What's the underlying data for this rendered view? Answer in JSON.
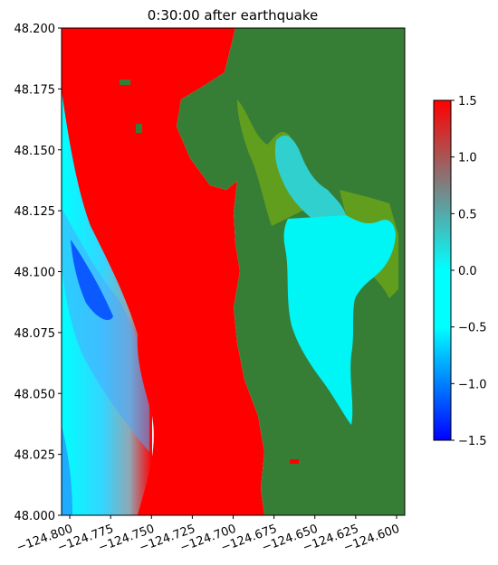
{
  "chart_data": {
    "type": "heatmap",
    "title": "0:30:00 after earthquake",
    "xlabel": "",
    "ylabel": "",
    "xlim": [
      -124.805,
      -124.595
    ],
    "ylim": [
      48.0,
      48.2
    ],
    "x_ticks": [
      -124.8,
      -124.775,
      -124.75,
      -124.725,
      -124.7,
      -124.675,
      -124.65,
      -124.625,
      -124.6
    ],
    "x_tick_labels": [
      "−124.800",
      "−124.775",
      "−124.750",
      "−124.725",
      "−124.700",
      "−124.675",
      "−124.650",
      "−124.625",
      "−124.600"
    ],
    "y_ticks": [
      48.0,
      48.025,
      48.05,
      48.075,
      48.1,
      48.125,
      48.15,
      48.175,
      48.2
    ],
    "y_tick_labels": [
      "48.000",
      "48.025",
      "48.050",
      "48.075",
      "48.100",
      "48.125",
      "48.150",
      "48.175",
      "48.200"
    ],
    "colorbar": {
      "min": -1.5,
      "max": 1.5,
      "ticks": [
        -1.5,
        -1.0,
        -0.5,
        0.0,
        0.5,
        1.0,
        1.5
      ],
      "tick_labels": [
        "−1.5",
        "−1.0",
        "−0.5",
        "0.0",
        "0.5",
        "1.0",
        "1.5"
      ],
      "colors": [
        "#0000ff",
        "#00ffff",
        "#ff0000"
      ]
    },
    "colors": {
      "land": "#367e36",
      "shore": "#6aa31a",
      "bay": "#00f5f5",
      "bay_upper": "#30d0cf",
      "open_ocean": "#33e0ff",
      "trough": "#0a5aff",
      "wave_crest": "#ff0000"
    }
  }
}
